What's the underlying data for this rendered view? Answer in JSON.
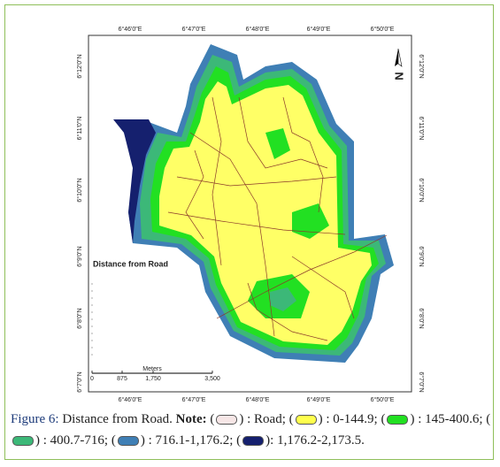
{
  "map": {
    "top_labels": [
      "6°46'0\"E",
      "6°47'0\"E",
      "6°48'0\"E",
      "6°49'0\"E",
      "6°50'0\"E"
    ],
    "bottom_labels": [
      "6°46'0\"E",
      "6°47'0\"E",
      "6°48'0\"E",
      "6°49'0\"E",
      "6°50'0\"E"
    ],
    "left_labels": [
      "6°12'0\"N",
      "6°11'0\"N",
      "6°10'0\"N",
      "6°9'0\"N",
      "6°8'0\"N",
      "6°7'0\"N"
    ],
    "right_labels": [
      "6°12'0\"N",
      "6°11'0\"N",
      "6°10'0\"N",
      "6°9'0\"N",
      "6°8'0\"N",
      "6°7'0\"N"
    ],
    "title": "Distance from Road",
    "north": "N",
    "scale": {
      "unit": "Meters",
      "ticks": [
        "0",
        "875",
        "1,750",
        "3,500"
      ]
    }
  },
  "caption": {
    "label": "Figure 6:",
    "text": "Distance from Road.",
    "note": "Note:",
    "items": [
      {
        "before": "(",
        "color": "#f6e6e6",
        "after": ") : Road;"
      },
      {
        "before": "(",
        "color": "#ffff4d",
        "after": ") : 0-144.9;"
      },
      {
        "before": "(",
        "color": "#22e022",
        "after": ") : 145-400.6;"
      },
      {
        "before": "(",
        "color": "#3cb878",
        "after": ") : 400.7-716;"
      },
      {
        "before": "(",
        "color": "#3f7fb5",
        "after": ") : 716.1-1,176.2;"
      },
      {
        "before": "(",
        "color": "#15206e",
        "after": "): 1,176.2-2,173.5."
      }
    ]
  }
}
